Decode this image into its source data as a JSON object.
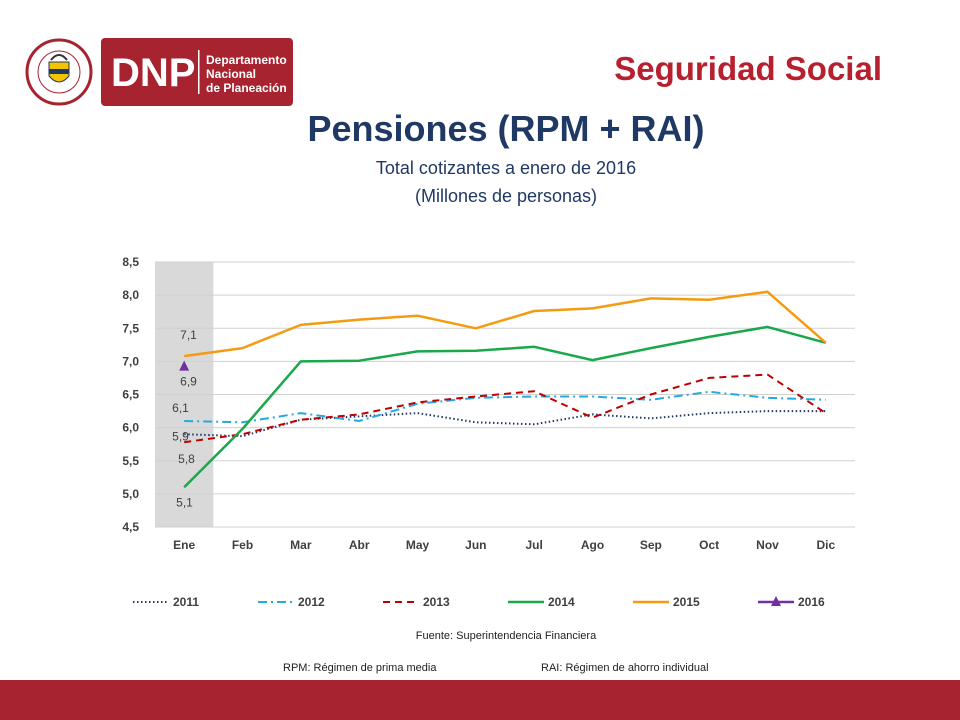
{
  "header": {
    "logo": {
      "seal_text": "REPUBLICA DE COLOMBIA",
      "wordmark": "DNP",
      "org_line1": "Departamento",
      "org_line2": "Nacional",
      "org_line3": "de Planeación"
    },
    "section_title": "Seguridad Social"
  },
  "title": "Pensiones (RPM + RAI)",
  "subtitle1": "Total cotizantes a enero de 2016",
  "subtitle2": "(Millones de personas)",
  "colors": {
    "brand_red": "#a82330",
    "title_blue": "#1f3864",
    "s2011": "#1f3864",
    "s2012": "#26a9e0",
    "s2013": "#c00000",
    "s2014": "#1aa84b",
    "s2015": "#f39c12",
    "s2016": "#7030a0"
  },
  "chart_data": {
    "type": "line",
    "categories": [
      "Ene",
      "Feb",
      "Mar",
      "Abr",
      "May",
      "Jun",
      "Jul",
      "Ago",
      "Sep",
      "Oct",
      "Nov",
      "Dic"
    ],
    "y_ticks": [
      "4,5",
      "5,0",
      "5,5",
      "6,0",
      "6,5",
      "7,0",
      "7,5",
      "8,0",
      "8,5"
    ],
    "ylim": [
      4.5,
      8.5
    ],
    "grid": true,
    "legend_position": "bottom",
    "highlight_category": "Ene",
    "series": [
      {
        "name": "2011",
        "color": "#1f3864",
        "dash": "dotted",
        "values": [
          5.9,
          5.87,
          6.12,
          6.17,
          6.22,
          6.08,
          6.05,
          6.2,
          6.14,
          6.22,
          6.25,
          6.25
        ]
      },
      {
        "name": "2012",
        "color": "#26a9e0",
        "dash": "dashdot",
        "values": [
          6.1,
          6.08,
          6.22,
          6.1,
          6.36,
          6.45,
          6.47,
          6.47,
          6.42,
          6.54,
          6.45,
          6.42
        ]
      },
      {
        "name": "2013",
        "color": "#c00000",
        "dash": "dashed",
        "values": [
          5.78,
          5.9,
          6.12,
          6.2,
          6.38,
          6.47,
          6.55,
          6.15,
          6.5,
          6.75,
          6.8,
          6.22
        ]
      },
      {
        "name": "2014",
        "color": "#1aa84b",
        "dash": "solid",
        "values": [
          5.1,
          5.98,
          7.0,
          7.01,
          7.15,
          7.16,
          7.22,
          7.02,
          7.2,
          7.37,
          7.52,
          7.28
        ]
      },
      {
        "name": "2015",
        "color": "#f39c12",
        "dash": "solid",
        "values": [
          7.08,
          7.2,
          7.55,
          7.63,
          7.69,
          7.5,
          7.76,
          7.8,
          7.95,
          7.93,
          8.05,
          7.28
        ]
      },
      {
        "name": "2016",
        "color": "#7030a0",
        "dash": "solid",
        "marker": "triangle",
        "values": [
          6.92,
          null,
          null,
          null,
          null,
          null,
          null,
          null,
          null,
          null,
          null,
          null
        ]
      }
    ],
    "data_labels": [
      {
        "series": "2015",
        "category": "Ene",
        "text": "7,1"
      },
      {
        "series": "2016",
        "category": "Ene",
        "text": "6,9"
      },
      {
        "series": "2012",
        "category": "Ene",
        "text": "6,1"
      },
      {
        "series": "2011",
        "category": "Ene",
        "text": "5,9"
      },
      {
        "series": "2013",
        "category": "Ene",
        "text": "5,8"
      },
      {
        "series": "2014",
        "category": "Ene",
        "text": "5,1"
      }
    ]
  },
  "source": "Fuente: Superintendencia Financiera",
  "notes": {
    "rpm": "RPM: Régimen de prima media",
    "rai": "RAI: Régimen de ahorro individual"
  }
}
